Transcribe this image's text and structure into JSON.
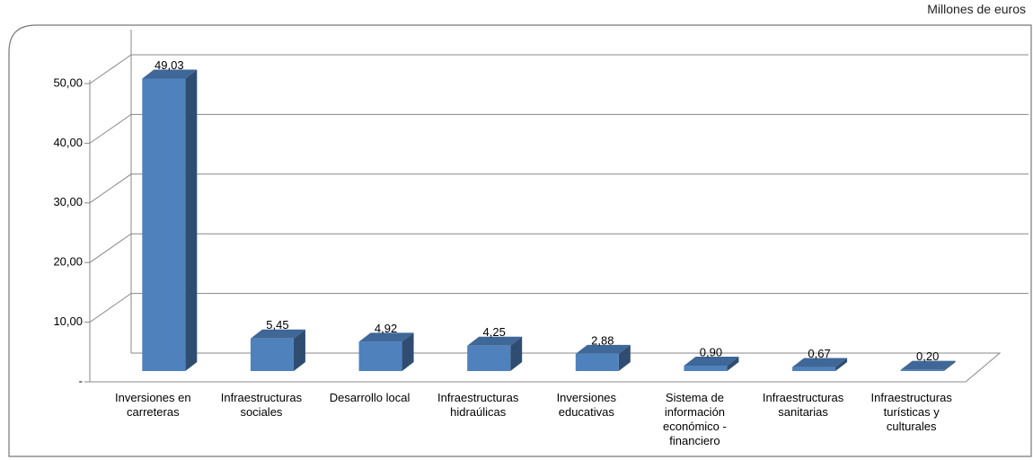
{
  "chart_data": {
    "type": "bar3d",
    "unit_note": "Millones de euros",
    "categories": [
      "Inversiones en carreteras",
      "Infraestructuras sociales",
      "Desarrollo local",
      "Infraestructuras hidraúlicas",
      "Inversiones educativas",
      "Sistema de información económico - financiero",
      "Infraestructuras sanitarias",
      "Infraestructuras turísticas y culturales"
    ],
    "values": [
      49.03,
      5.45,
      4.92,
      4.25,
      2.88,
      0.9,
      0.67,
      0.2
    ],
    "value_labels": [
      "49,03",
      "5,45",
      "4,92",
      "4,25",
      "2,88",
      "0,90",
      "0,67",
      "0,20"
    ],
    "color": "#4f81bd",
    "ylim": [
      0,
      50
    ],
    "yticks": [
      {
        "value": 0,
        "label": "-"
      },
      {
        "value": 10,
        "label": "10,00"
      },
      {
        "value": 20,
        "label": "20,00"
      },
      {
        "value": 30,
        "label": "30,00"
      },
      {
        "value": 40,
        "label": "40,00"
      },
      {
        "value": 50,
        "label": "50,00"
      }
    ],
    "grid": true
  }
}
